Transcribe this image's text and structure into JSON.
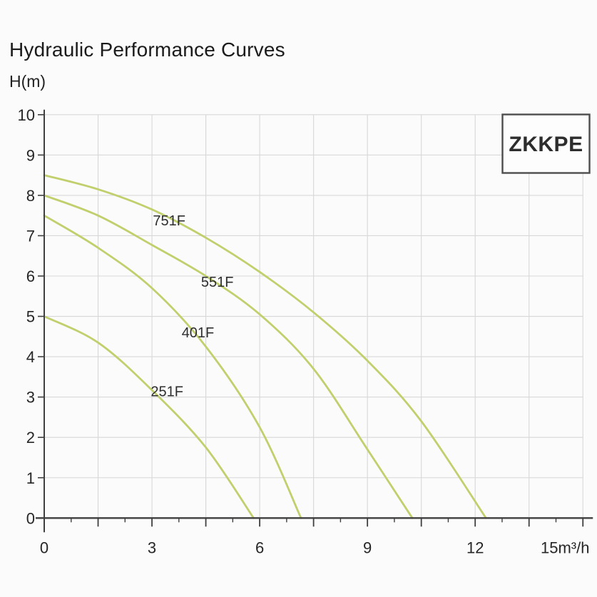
{
  "page": {
    "title": "Hydraulic Performance Curves",
    "background": "#fbfbfb"
  },
  "chart_data": {
    "type": "line",
    "title": "Hydraulic Performance Curves",
    "ylabel": "H(m)",
    "xlabel": "m³/h",
    "badge": "ZKKPE",
    "xlim": [
      0,
      15
    ],
    "ylim": [
      0,
      10
    ],
    "grid": {
      "on": true,
      "x_step": 1.5,
      "y_step": 1,
      "color": "#d8d8d8"
    },
    "x_minor_tick_step": 0.75,
    "x_tick_labels": [
      {
        "value": 0,
        "label": "0"
      },
      {
        "value": 3,
        "label": "3"
      },
      {
        "value": 6,
        "label": "6"
      },
      {
        "value": 9,
        "label": "9"
      },
      {
        "value": 12,
        "label": "12"
      },
      {
        "value": 15,
        "label": "15m³/h"
      }
    ],
    "y_tick_labels": [
      "0",
      "1",
      "2",
      "3",
      "4",
      "5",
      "6",
      "7",
      "8",
      "9",
      "10"
    ],
    "curve_color": "#c2cf6d",
    "axis_color": "#3f3f3f",
    "legend_position": "top-right-box",
    "series": [
      {
        "name": "751F",
        "label_x": 3.48,
        "label_y": 7.38,
        "points": [
          [
            0,
            8.5
          ],
          [
            1.5,
            8.15
          ],
          [
            3,
            7.65
          ],
          [
            4.5,
            6.95
          ],
          [
            6,
            6.1
          ],
          [
            7.5,
            5.1
          ],
          [
            9,
            3.9
          ],
          [
            10.5,
            2.4
          ],
          [
            12.3,
            0
          ]
        ]
      },
      {
        "name": "551F",
        "label_x": 4.82,
        "label_y": 5.86,
        "points": [
          [
            0,
            8.0
          ],
          [
            1.5,
            7.5
          ],
          [
            3,
            6.77
          ],
          [
            4.5,
            6.0
          ],
          [
            6,
            5.05
          ],
          [
            7.5,
            3.7
          ],
          [
            9,
            1.7
          ],
          [
            10.25,
            0
          ]
        ]
      },
      {
        "name": "401F",
        "label_x": 4.28,
        "label_y": 4.6,
        "points": [
          [
            0,
            7.5
          ],
          [
            1.5,
            6.7
          ],
          [
            3,
            5.7
          ],
          [
            4.5,
            4.25
          ],
          [
            6,
            2.25
          ],
          [
            7.15,
            0
          ]
        ]
      },
      {
        "name": "251F",
        "label_x": 3.42,
        "label_y": 3.14,
        "points": [
          [
            0,
            5.0
          ],
          [
            1.5,
            4.35
          ],
          [
            3,
            3.17
          ],
          [
            4.5,
            1.75
          ],
          [
            5.83,
            0
          ]
        ]
      }
    ]
  }
}
